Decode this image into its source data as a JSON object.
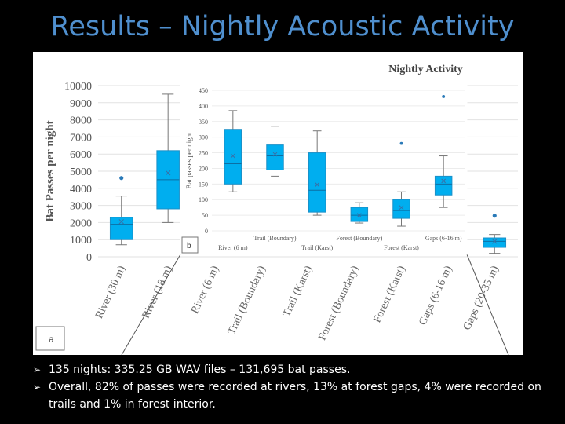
{
  "slide": {
    "title": "Results – Nightly Acoustic Activity",
    "bullets": [
      "135 nights: 335.25 GB WAV files – 131,695 bat passes.",
      "Overall, 82% of passes were recorded at rivers, 13% at forest gaps, 4% were recorded on trails and 1% in forest interior."
    ]
  },
  "colors": {
    "title": "#4f8fce",
    "box": "#00aeef",
    "box_edge": "#1a90c8",
    "whisker": "#777777",
    "mean_marker": "#3a6ea5",
    "outlier": "#2a7ab8"
  },
  "chart_data": [
    {
      "panel": "a",
      "type": "box",
      "title": "",
      "xlabel": "",
      "ylabel": "Bat Passes per night",
      "ylim": [
        0,
        10000
      ],
      "yticks": [
        0,
        1000,
        2000,
        3000,
        4000,
        5000,
        6000,
        7000,
        8000,
        9000,
        10000
      ],
      "categories": [
        "River (30 m)",
        "River (18 m)",
        "River (6 m)",
        "Trail (Boundary)",
        "Trail (Karst)",
        "Forest (Boundary)",
        "Forest (Karst)",
        "Gaps (6-16 m)",
        "Gaps (20-35 m)"
      ],
      "boxes": [
        {
          "category": "River (30 m)",
          "min": 700,
          "q1": 1000,
          "median": 1900,
          "q3": 2300,
          "max": 3550,
          "mean": 2050,
          "outliers": [
            4600
          ]
        },
        {
          "category": "River (18 m)",
          "min": 2000,
          "q1": 2800,
          "median": 4500,
          "q3": 6200,
          "max": 9500,
          "mean": 4900,
          "outliers": []
        },
        {
          "category": "Gaps (20-35 m)",
          "min": 200,
          "q1": 550,
          "median": 900,
          "q3": 1100,
          "max": 1300,
          "mean": 900,
          "outliers": [
            2400
          ]
        }
      ]
    },
    {
      "panel": "b",
      "type": "box",
      "title": "Nightly Activity",
      "xlabel": "",
      "ylabel": "Bat passes per night",
      "ylim": [
        0,
        450
      ],
      "yticks": [
        0,
        50,
        100,
        150,
        200,
        250,
        300,
        350,
        400,
        450
      ],
      "categories": [
        "River (6 m)",
        "Trail (Boundary)",
        "Trail (Karst)",
        "Forest (Boundary)",
        "Forest (Karst)",
        "Gaps (6-16 m)"
      ],
      "boxes": [
        {
          "category": "River (6 m)",
          "min": 125,
          "q1": 150,
          "median": 215,
          "q3": 325,
          "max": 385,
          "mean": 240,
          "outliers": []
        },
        {
          "category": "Trail (Boundary)",
          "min": 175,
          "q1": 195,
          "median": 240,
          "q3": 275,
          "max": 335,
          "mean": 245,
          "outliers": []
        },
        {
          "category": "Trail (Karst)",
          "min": 50,
          "q1": 60,
          "median": 130,
          "q3": 250,
          "max": 320,
          "mean": 148,
          "outliers": []
        },
        {
          "category": "Forest (Boundary)",
          "min": 25,
          "q1": 30,
          "median": 50,
          "q3": 75,
          "max": 90,
          "mean": 50,
          "outliers": []
        },
        {
          "category": "Forest (Karst)",
          "min": 15,
          "q1": 40,
          "median": 65,
          "q3": 100,
          "max": 125,
          "mean": 75,
          "outliers": [
            280
          ]
        },
        {
          "category": "Gaps (6-16 m)",
          "min": 75,
          "q1": 115,
          "median": 150,
          "q3": 175,
          "max": 240,
          "mean": 160,
          "outliers": [
            430
          ]
        }
      ]
    }
  ]
}
